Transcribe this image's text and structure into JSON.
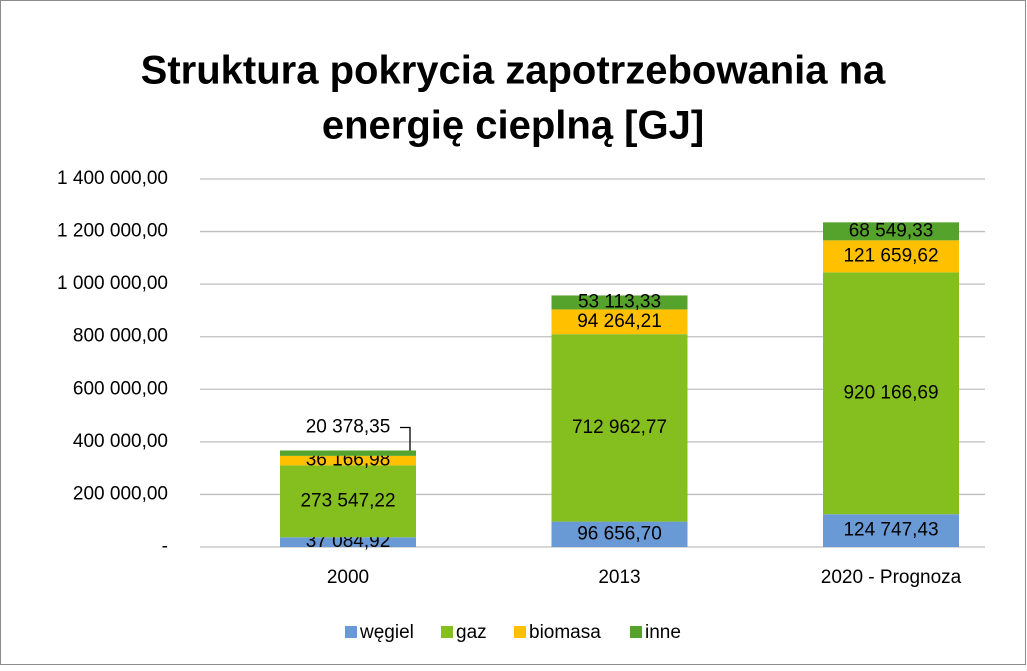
{
  "chart_data": {
    "type": "stacked_bar",
    "title": [
      "Struktura pokrycia zapotrzebowania na",
      "energię cieplną [GJ]"
    ],
    "categories": [
      "2000",
      "2013",
      "2020 - Prognoza"
    ],
    "series": [
      {
        "name": "węgiel",
        "color": "#6a9ad6",
        "values": [
          37084.92,
          96656.7,
          124747.43
        ],
        "value_labels": [
          "37 084,92",
          "96 656,70",
          "124 747,43"
        ]
      },
      {
        "name": "gaz",
        "color": "#84bf1f",
        "values": [
          273547.22,
          712962.77,
          920166.69
        ],
        "value_labels": [
          "273 547,22",
          "712 962,77",
          "920 166,69"
        ]
      },
      {
        "name": "biomasa",
        "color": "#ffc000",
        "values": [
          36166.98,
          94264.21,
          121659.62
        ],
        "value_labels": [
          "36 166,98",
          "94 264,21",
          "121 659,62"
        ]
      },
      {
        "name": "inne",
        "color": "#55a22c",
        "values": [
          20378.35,
          53113.33,
          68549.33
        ],
        "value_labels": [
          "20 378,35",
          "53 113,33",
          "68 549,33"
        ]
      }
    ],
    "ylim": [
      0,
      1400000
    ],
    "yticks": [
      {
        "value": 0,
        "label": "-"
      },
      {
        "value": 200000,
        "label": "200 000,00"
      },
      {
        "value": 400000,
        "label": "400 000,00"
      },
      {
        "value": 600000,
        "label": "600 000,00"
      },
      {
        "value": 800000,
        "label": "800 000,00"
      },
      {
        "value": 1000000,
        "label": "1 000 000,00"
      },
      {
        "value": 1200000,
        "label": "1 200 000,00"
      },
      {
        "value": 1400000,
        "label": "1 400 000,00"
      }
    ],
    "grid": true,
    "legend": "bottom"
  }
}
